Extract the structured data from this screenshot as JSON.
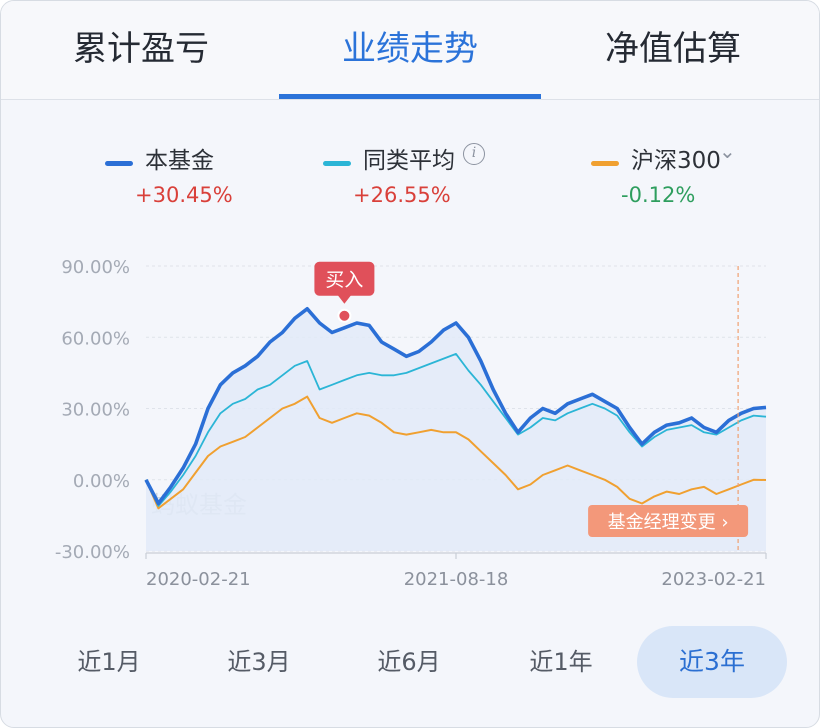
{
  "tabs": [
    {
      "label": "累计盈亏",
      "active": false
    },
    {
      "label": "业绩走势",
      "active": true
    },
    {
      "label": "净值估算",
      "active": false
    }
  ],
  "legend": [
    {
      "name": "本基金",
      "value": "+30.45%",
      "color": "#2b6fd6",
      "value_color": "#d9403a"
    },
    {
      "name": "同类平均",
      "value": "+26.55%",
      "color": "#2bb5d6",
      "value_color": "#d9403a",
      "icon": "info-icon"
    },
    {
      "name": "沪深300",
      "value": "-0.12%",
      "color": "#f0a030",
      "value_color": "#2e9e5e",
      "icon": "chevron-down-icon"
    }
  ],
  "periods": [
    {
      "label": "近1月",
      "active": false
    },
    {
      "label": "近3月",
      "active": false
    },
    {
      "label": "近6月",
      "active": false
    },
    {
      "label": "近1年",
      "active": false
    },
    {
      "label": "近3年",
      "active": true
    }
  ],
  "chart_data": {
    "type": "line",
    "ylim": [
      -30,
      90
    ],
    "y_ticks": [
      "90.00%",
      "60.00%",
      "30.00%",
      "0.00%",
      "-30.00%"
    ],
    "y_tick_values": [
      90,
      60,
      30,
      0,
      -30
    ],
    "x_ticks": [
      "2020-02-21",
      "2021-08-18",
      "2023-02-21"
    ],
    "watermark": "蚂蚁基金",
    "annotations": {
      "buy": {
        "label": "买入",
        "x": 0.32
      },
      "manager_change": {
        "label": "基金经理变更 ›",
        "x": 0.955
      }
    },
    "x": [
      0,
      0.02,
      0.04,
      0.06,
      0.08,
      0.1,
      0.12,
      0.14,
      0.16,
      0.18,
      0.2,
      0.22,
      0.24,
      0.26,
      0.28,
      0.3,
      0.32,
      0.34,
      0.36,
      0.38,
      0.4,
      0.42,
      0.44,
      0.46,
      0.48,
      0.5,
      0.52,
      0.54,
      0.56,
      0.58,
      0.6,
      0.62,
      0.64,
      0.66,
      0.68,
      0.7,
      0.72,
      0.74,
      0.76,
      0.78,
      0.8,
      0.82,
      0.84,
      0.86,
      0.88,
      0.9,
      0.92,
      0.94,
      0.96,
      0.98,
      1.0
    ],
    "series": [
      {
        "name": "本基金",
        "color": "#2b6fd6",
        "values": [
          0,
          -10,
          -3,
          5,
          15,
          30,
          40,
          45,
          48,
          52,
          58,
          62,
          68,
          72,
          66,
          62,
          64,
          66,
          65,
          58,
          55,
          52,
          54,
          58,
          63,
          66,
          60,
          50,
          38,
          28,
          20,
          26,
          30,
          28,
          32,
          34,
          36,
          33,
          30,
          22,
          15,
          20,
          23,
          24,
          26,
          22,
          20,
          25,
          28,
          30,
          30.45
        ]
      },
      {
        "name": "同类平均",
        "color": "#2bb5d6",
        "values": [
          0,
          -11,
          -5,
          2,
          10,
          20,
          28,
          32,
          34,
          38,
          40,
          44,
          48,
          50,
          38,
          40,
          42,
          44,
          45,
          44,
          44,
          45,
          47,
          49,
          51,
          53,
          46,
          40,
          33,
          26,
          19,
          22,
          26,
          25,
          28,
          30,
          32,
          30,
          27,
          20,
          14,
          18,
          21,
          22,
          23,
          20,
          19,
          22,
          25,
          27,
          26.55
        ]
      },
      {
        "name": "沪深300",
        "color": "#f0a030",
        "values": [
          0,
          -12,
          -8,
          -4,
          3,
          10,
          14,
          16,
          18,
          22,
          26,
          30,
          32,
          35,
          26,
          24,
          26,
          28,
          27,
          24,
          20,
          19,
          20,
          21,
          20,
          20,
          17,
          12,
          7,
          2,
          -4,
          -2,
          2,
          4,
          6,
          4,
          2,
          0,
          -3,
          -8,
          -10,
          -7,
          -5,
          -6,
          -4,
          -3,
          -6,
          -4,
          -2,
          0,
          -0.12
        ]
      }
    ]
  }
}
